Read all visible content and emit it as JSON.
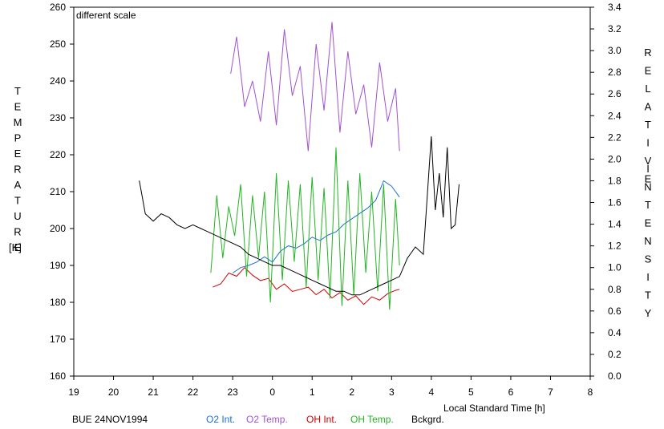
{
  "colors": {
    "o2_int": "#1a6fd6",
    "o2_temp": "#a052d0",
    "oh_int": "#d00000",
    "oh_temp": "#22b522",
    "bckgrd": "#000000",
    "axis": "#000000"
  },
  "labels": {
    "left_axis_word": "TEMPERATURE",
    "left_axis_unit": "[K]",
    "right_axis_word1": "RELATIVE",
    "right_axis_word2": "INTENSITY",
    "x_axis_label": "Local Standard Time [h]",
    "annotation": "different scale",
    "station": "BUE 24NOV1994"
  },
  "chart_data": {
    "type": "line",
    "xlabel": "Local Standard Time [h]",
    "ylabel": "TEMPERATURE [K]",
    "y2label": "RELATIVE INTENSITY",
    "x_ticks": [
      "19",
      "20",
      "21",
      "22",
      "23",
      "0",
      "1",
      "2",
      "3",
      "4",
      "5",
      "6",
      "7",
      "8"
    ],
    "xlim": [
      19,
      32
    ],
    "ylim": [
      160,
      260
    ],
    "y_ticks": [
      160,
      170,
      180,
      190,
      200,
      210,
      220,
      230,
      240,
      250,
      260
    ],
    "y2lim": [
      0.0,
      3.4
    ],
    "y2_ticks": [
      "0.0",
      "0.2",
      "0.4",
      "0.6",
      "0.8",
      "1.0",
      "1.2",
      "1.4",
      "1.6",
      "1.8",
      "2.0",
      "2.2",
      "2.4",
      "2.6",
      "2.8",
      "3.0",
      "3.2",
      "3.4"
    ],
    "annotations": [
      "different scale"
    ],
    "legend": [
      "O2 Int.",
      "O2 Temp.",
      "OH Int.",
      "OH Temp.",
      "Bckgrd."
    ],
    "legend_position": "bottom",
    "series": [
      {
        "name": "O2 Int.",
        "axis": "right",
        "x": [
          23.0,
          23.2,
          23.4,
          23.6,
          23.8,
          24.0,
          24.2,
          24.4,
          24.6,
          24.8,
          25.0,
          25.2,
          25.4,
          25.6,
          25.8,
          26.0,
          26.2,
          26.4,
          26.6,
          26.8,
          27.0,
          27.2
        ],
        "y": [
          0.95,
          1.0,
          1.02,
          1.05,
          1.1,
          1.05,
          1.15,
          1.2,
          1.18,
          1.22,
          1.28,
          1.25,
          1.3,
          1.33,
          1.4,
          1.45,
          1.5,
          1.55,
          1.62,
          1.8,
          1.75,
          1.65
        ]
      },
      {
        "name": "O2 Temp.",
        "axis": "left",
        "x": [
          22.95,
          23.1,
          23.3,
          23.5,
          23.7,
          23.9,
          24.1,
          24.3,
          24.5,
          24.7,
          24.9,
          25.1,
          25.3,
          25.5,
          25.7,
          25.9,
          26.1,
          26.3,
          26.5,
          26.7,
          26.9,
          27.1,
          27.2
        ],
        "y": [
          242,
          252,
          233,
          240,
          229,
          248,
          228,
          254,
          236,
          244,
          221,
          250,
          232,
          256,
          226,
          248,
          231,
          239,
          222,
          245,
          229,
          238,
          221
        ]
      },
      {
        "name": "OH Int.",
        "axis": "right",
        "x": [
          22.5,
          22.7,
          22.9,
          23.1,
          23.3,
          23.5,
          23.7,
          23.9,
          24.1,
          24.3,
          24.5,
          24.7,
          24.9,
          25.1,
          25.3,
          25.5,
          25.7,
          25.9,
          26.1,
          26.3,
          26.5,
          26.7,
          26.9,
          27.1,
          27.2
        ],
        "y": [
          0.82,
          0.85,
          0.95,
          0.92,
          1.0,
          0.93,
          0.88,
          0.9,
          0.8,
          0.85,
          0.78,
          0.8,
          0.82,
          0.75,
          0.8,
          0.72,
          0.77,
          0.7,
          0.74,
          0.66,
          0.73,
          0.7,
          0.76,
          0.79,
          0.8
        ]
      },
      {
        "name": "OH Temp.",
        "axis": "left",
        "x": [
          22.45,
          22.6,
          22.75,
          22.9,
          23.05,
          23.2,
          23.35,
          23.5,
          23.65,
          23.8,
          23.95,
          24.1,
          24.25,
          24.4,
          24.55,
          24.7,
          24.85,
          25.0,
          25.15,
          25.3,
          25.45,
          25.6,
          25.75,
          25.9,
          26.05,
          26.2,
          26.35,
          26.5,
          26.65,
          26.8,
          26.95,
          27.1,
          27.2
        ],
        "y": [
          188,
          209,
          192,
          206,
          198,
          212,
          187,
          209,
          192,
          210,
          180,
          215,
          186,
          213,
          191,
          212,
          184,
          214,
          186,
          211,
          181,
          222,
          179,
          213,
          182,
          215,
          188,
          210,
          183,
          212,
          178,
          208,
          190
        ]
      },
      {
        "name": "Bckgrd.",
        "axis": "left",
        "x": [
          20.65,
          20.8,
          21.0,
          21.2,
          21.4,
          21.6,
          21.8,
          22.0,
          22.2,
          22.4,
          22.6,
          22.8,
          23.0,
          23.2,
          23.4,
          23.6,
          23.8,
          24.0,
          24.2,
          24.4,
          24.6,
          24.8,
          25.0,
          25.2,
          25.4,
          25.6,
          25.8,
          26.0,
          26.2,
          26.4,
          26.6,
          26.8,
          27.0,
          27.2,
          27.4,
          27.6,
          27.8,
          28.0,
          28.1,
          28.2,
          28.3,
          28.4,
          28.5,
          28.6,
          28.7
        ],
        "y": [
          213,
          204,
          202,
          204,
          203,
          201,
          200,
          201,
          200,
          199,
          198,
          197,
          196,
          195,
          193,
          192,
          191,
          190,
          190,
          189,
          188,
          187,
          186,
          185,
          184,
          183,
          183,
          182,
          182,
          183,
          184,
          185,
          186,
          187,
          192,
          195,
          193,
          225,
          205,
          215,
          203,
          222,
          200,
          201,
          212
        ]
      }
    ]
  }
}
